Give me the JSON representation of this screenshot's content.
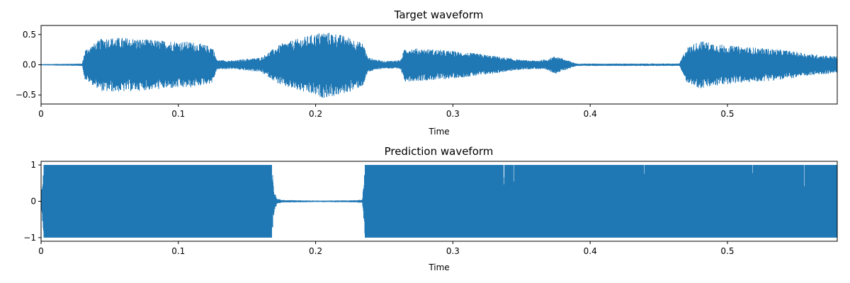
{
  "chart_data": [
    {
      "type": "line",
      "title": "Target waveform",
      "xlabel": "Time",
      "ylabel": "",
      "xlim": [
        0,
        0.58
      ],
      "ylim": [
        -0.65,
        0.65
      ],
      "xticks": [
        0,
        0.1,
        0.2,
        0.3,
        0.4,
        0.5
      ],
      "xtick_labels": [
        "0",
        "0.1",
        "0.2",
        "0.3",
        "0.4",
        "0.5"
      ],
      "yticks": [
        0.5,
        0.0,
        -0.5
      ],
      "ytick_labels": [
        "0.5",
        "0.0",
        "−0.5"
      ],
      "grid": false,
      "color": "#1f77b4",
      "envelope": {
        "description_free": true,
        "x": [
          0,
          0.03,
          0.032,
          0.045,
          0.06,
          0.09,
          0.11,
          0.125,
          0.128,
          0.14,
          0.15,
          0.16,
          0.175,
          0.19,
          0.205,
          0.215,
          0.225,
          0.235,
          0.238,
          0.25,
          0.262,
          0.265,
          0.29,
          0.32,
          0.35,
          0.36,
          0.368,
          0.375,
          0.383,
          0.39,
          0.42,
          0.45,
          0.465,
          0.47,
          0.48,
          0.5,
          0.54,
          0.56,
          0.58
        ],
        "amplitude": [
          0.01,
          0.02,
          0.25,
          0.45,
          0.45,
          0.4,
          0.38,
          0.3,
          0.08,
          0.07,
          0.1,
          0.12,
          0.35,
          0.45,
          0.55,
          0.52,
          0.45,
          0.35,
          0.12,
          0.06,
          0.08,
          0.28,
          0.25,
          0.18,
          0.08,
          0.07,
          0.09,
          0.15,
          0.08,
          0.02,
          0.02,
          0.02,
          0.02,
          0.28,
          0.4,
          0.32,
          0.25,
          0.18,
          0.14
        ]
      }
    },
    {
      "type": "line",
      "title": "Prediction waveform",
      "xlabel": "Time",
      "ylabel": "",
      "xlim": [
        0,
        0.58
      ],
      "ylim": [
        -1.1,
        1.1
      ],
      "xticks": [
        0,
        0.1,
        0.2,
        0.3,
        0.4,
        0.5
      ],
      "xtick_labels": [
        "0",
        "0.1",
        "0.2",
        "0.3",
        "0.4",
        "0.5"
      ],
      "yticks": [
        1,
        0,
        -1
      ],
      "ytick_labels": [
        "1",
        "0",
        "−1"
      ],
      "grid": false,
      "color": "#1f77b4",
      "envelope": {
        "x": [
          0,
          0.002,
          0.16,
          0.168,
          0.17,
          0.172,
          0.175,
          0.2,
          0.23,
          0.234,
          0.236,
          0.58
        ],
        "amplitude": [
          0.1,
          1.0,
          1.0,
          1.0,
          0.25,
          0.08,
          0.04,
          0.02,
          0.03,
          0.05,
          1.0,
          1.0
        ]
      }
    }
  ]
}
